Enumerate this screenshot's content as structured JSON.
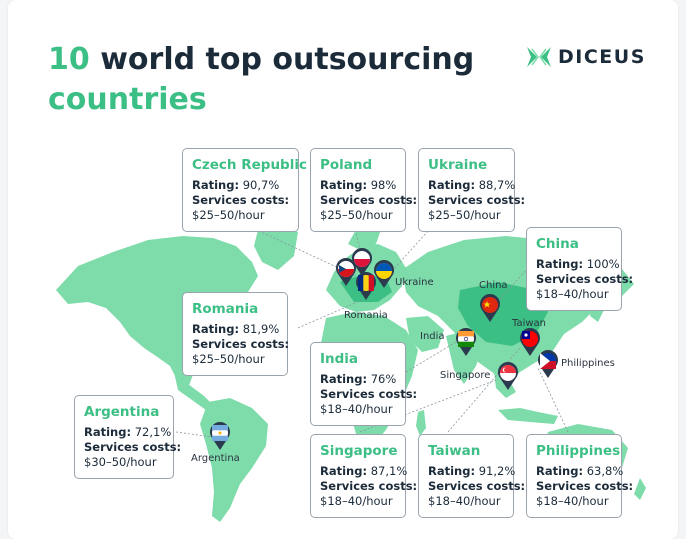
{
  "title": {
    "number": "10",
    "line1_rest": "world top outsourcing",
    "line2": "countries"
  },
  "logo": {
    "text": "DICEUS",
    "colors": {
      "mark": "#3cbf84",
      "text": "#1c2b3a"
    }
  },
  "labels": {
    "rating": "Rating:",
    "costs": "Services costs:"
  },
  "colors": {
    "accent": "#3cbf84",
    "land": "#7ddcaa",
    "land_highlight": "#3cbf84",
    "pin": "#2c3a4e"
  },
  "countries": [
    {
      "id": "czech-republic",
      "name": "Czech Republic",
      "rating": "90,7%",
      "costs": "$25–50/hour",
      "map_label": "",
      "icon": "czech-flag-icon"
    },
    {
      "id": "poland",
      "name": "Poland",
      "rating": "98%",
      "costs": "$25–50/hour",
      "map_label": "",
      "icon": "poland-flag-icon"
    },
    {
      "id": "ukraine",
      "name": "Ukraine",
      "rating": "88,7%",
      "costs": "$25–50/hour",
      "map_label": "Ukraine",
      "icon": "ukraine-flag-icon"
    },
    {
      "id": "china",
      "name": "China",
      "rating": "100%",
      "costs": "$18–40/hour",
      "map_label": "China",
      "icon": "china-flag-icon"
    },
    {
      "id": "romania",
      "name": "Romania",
      "rating": "81,9%",
      "costs": "$25–50/hour",
      "map_label": "Romania",
      "icon": "romania-flag-icon"
    },
    {
      "id": "india",
      "name": "India",
      "rating": "76%",
      "costs": "$18–40/hour",
      "map_label": "India",
      "icon": "india-flag-icon"
    },
    {
      "id": "argentina",
      "name": "Argentina",
      "rating": "72,1%",
      "costs": "$30–50/hour",
      "map_label": "Argentina",
      "icon": "argentina-flag-icon"
    },
    {
      "id": "singapore",
      "name": "Singapore",
      "rating": "87,1%",
      "costs": "$18–40/hour",
      "map_label": "Singapore",
      "icon": "singapore-flag-icon"
    },
    {
      "id": "taiwan",
      "name": "Taiwan",
      "rating": " 91,2%",
      "costs": "$18–40/hour",
      "map_label": "Taiwan",
      "icon": "taiwan-flag-icon"
    },
    {
      "id": "philippines",
      "name": "Philippines",
      "rating": "63,8%",
      "costs": "$18–40/hour",
      "map_label": "Philippines",
      "icon": "philippines-flag-icon"
    }
  ]
}
